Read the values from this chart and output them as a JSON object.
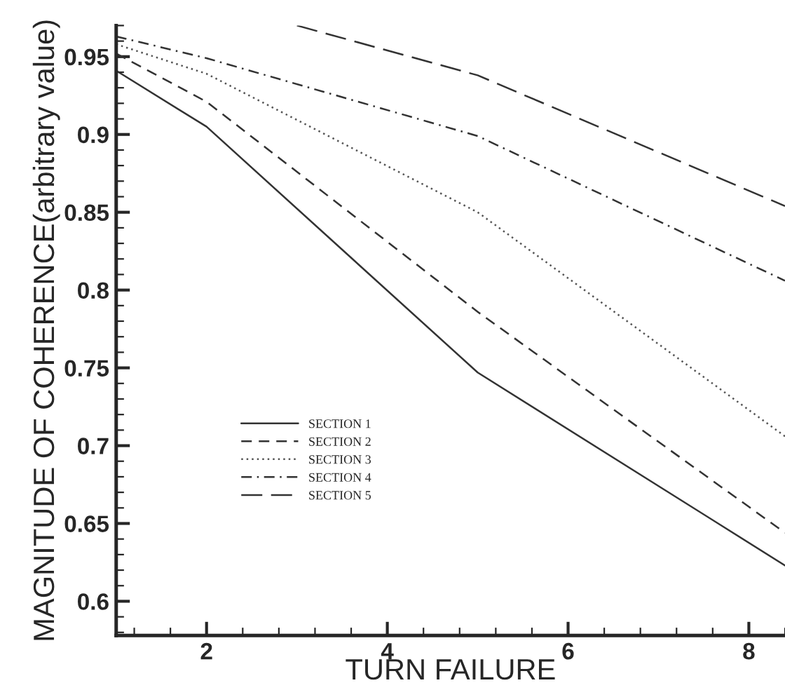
{
  "chart_data": {
    "type": "line",
    "xlabel": "TURN FAILURE",
    "ylabel": "MAGNITUDE OF COHERENCE(arbitrary value)",
    "xlim": [
      1,
      8.4
    ],
    "ylim": [
      0.578,
      0.97
    ],
    "xticks": [
      2,
      4,
      6,
      8
    ],
    "yticks": [
      0.6,
      0.65,
      0.7,
      0.75,
      0.8,
      0.85,
      0.9,
      0.95
    ],
    "grid": false,
    "legend": "lower left",
    "marker": "none",
    "series": [
      {
        "name": "SECTION 1",
        "color": "#333333",
        "line_style": "solid",
        "x": [
          1,
          2,
          5,
          8.4
        ],
        "values": [
          0.941,
          0.905,
          0.747,
          0.623
        ]
      },
      {
        "name": "SECTION 2",
        "color": "#333333",
        "line_style": "dashed",
        "x": [
          1,
          2,
          5,
          8.4
        ],
        "values": [
          0.952,
          0.921,
          0.786,
          0.644
        ]
      },
      {
        "name": "SECTION 3",
        "color": "#555555",
        "line_style": "dotted",
        "x": [
          1,
          2,
          5,
          8.4
        ],
        "values": [
          0.958,
          0.939,
          0.85,
          0.706
        ]
      },
      {
        "name": "SECTION 4",
        "color": "#333333",
        "line_style": "dashdot",
        "x": [
          1,
          2,
          5,
          8.4
        ],
        "values": [
          0.963,
          0.949,
          0.899,
          0.806
        ]
      },
      {
        "name": "SECTION 5",
        "color": "#333333",
        "line_style": "longdash",
        "x": [
          3,
          5,
          8.4
        ],
        "values": [
          0.97,
          0.938,
          0.854
        ]
      }
    ]
  }
}
